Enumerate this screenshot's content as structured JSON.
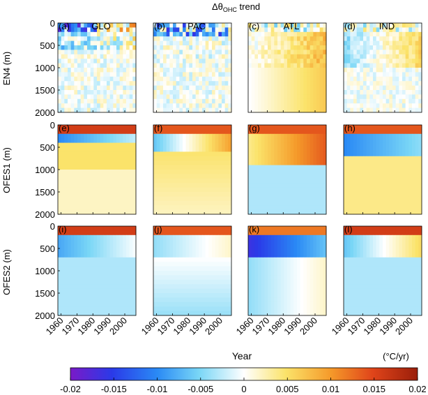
{
  "title": "Δθ",
  "title_sub": "OHC",
  "title_suffix": " trend",
  "row_labels": [
    "EN4 (m)",
    "OFES1 (m)",
    "OFES2 (m)"
  ],
  "panel_letters": [
    "(a)",
    "(b)",
    "(c)",
    "(d)",
    "(e)",
    "(f)",
    "(g)",
    "(h)",
    "(i)",
    "(j)",
    "(k)",
    "(l)"
  ],
  "column_titles": [
    "GLO",
    "PAC",
    "ATL",
    "IND"
  ],
  "xlabel": "Year",
  "units": "(°C/yr)",
  "chart_data": {
    "type": "heatmap",
    "panels": [
      {
        "id": "a",
        "row": "EN4",
        "basin": "GLO"
      },
      {
        "id": "b",
        "row": "EN4",
        "basin": "PAC"
      },
      {
        "id": "c",
        "row": "EN4",
        "basin": "ATL"
      },
      {
        "id": "d",
        "row": "EN4",
        "basin": "IND"
      },
      {
        "id": "e",
        "row": "OFES1",
        "basin": "GLO"
      },
      {
        "id": "f",
        "row": "OFES1",
        "basin": "PAC"
      },
      {
        "id": "g",
        "row": "OFES1",
        "basin": "ATL"
      },
      {
        "id": "h",
        "row": "OFES1",
        "basin": "IND"
      },
      {
        "id": "i",
        "row": "OFES2",
        "basin": "GLO"
      },
      {
        "id": "j",
        "row": "OFES2",
        "basin": "PAC"
      },
      {
        "id": "k",
        "row": "OFES2",
        "basin": "ATL"
      },
      {
        "id": "l",
        "row": "OFES2",
        "basin": "IND"
      }
    ],
    "x_ticks": [
      1960,
      1970,
      1980,
      1990,
      2000
    ],
    "y_ticks": [
      0,
      500,
      1000,
      1500,
      2000
    ],
    "xlim": [
      1958,
      2007
    ],
    "ylim": [
      0,
      2000
    ],
    "y_reversed": true,
    "colorbar": {
      "ticks": [
        -0.02,
        -0.015,
        -0.01,
        -0.005,
        0,
        0.005,
        0.01,
        0.015,
        0.02
      ],
      "tick_labels": [
        "-0.02",
        "-0.015",
        "-0.01",
        "-0.005",
        "0",
        "0.005",
        "0.01",
        "0.015",
        "0.02"
      ],
      "range": [
        -0.02,
        0.02
      ]
    }
  }
}
